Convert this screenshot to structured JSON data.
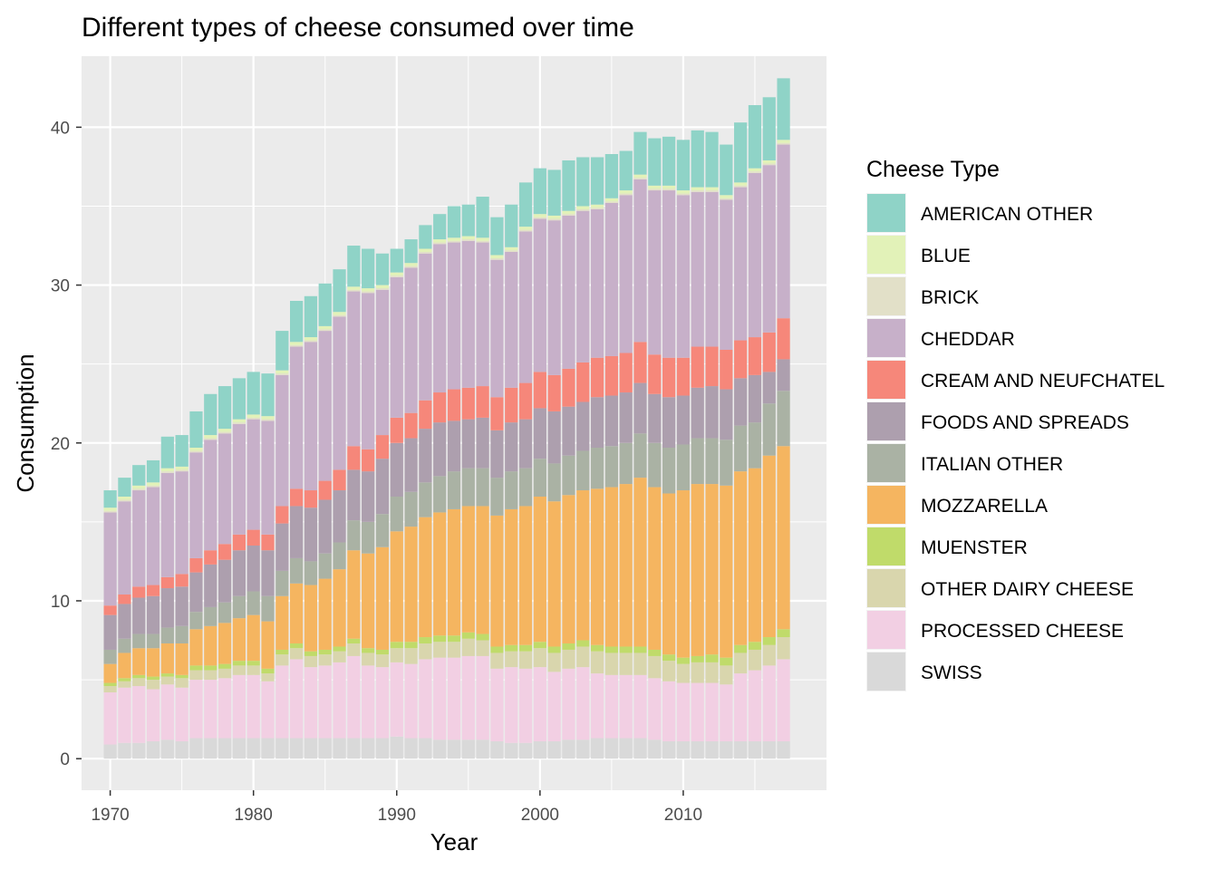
{
  "chart_data": {
    "type": "bar",
    "stacked": true,
    "title": "Different types of cheese consumed over time",
    "xlabel": "Year",
    "ylabel": "Consumption",
    "xlim": [
      1968,
      2020
    ],
    "ylim": [
      -2,
      44.5
    ],
    "x_ticks": [
      1970,
      1980,
      1990,
      2000,
      2010
    ],
    "y_ticks": [
      0,
      10,
      20,
      30,
      40
    ],
    "legend_title": "Cheese Type",
    "legend_position": "right",
    "grid": true,
    "x": [
      1970,
      1971,
      1972,
      1973,
      1974,
      1975,
      1976,
      1977,
      1978,
      1979,
      1980,
      1981,
      1982,
      1983,
      1984,
      1985,
      1986,
      1987,
      1988,
      1989,
      1990,
      1991,
      1992,
      1993,
      1994,
      1995,
      1996,
      1997,
      1998,
      1999,
      2000,
      2001,
      2002,
      2003,
      2004,
      2005,
      2006,
      2007,
      2008,
      2009,
      2010,
      2011,
      2012,
      2013,
      2014,
      2015,
      2016,
      2017
    ],
    "series": [
      {
        "name": "SWISS",
        "color": "#d9d9d9",
        "values": [
          0.9,
          1.0,
          1.0,
          1.1,
          1.2,
          1.1,
          1.3,
          1.3,
          1.3,
          1.3,
          1.3,
          1.3,
          1.3,
          1.3,
          1.3,
          1.3,
          1.3,
          1.3,
          1.3,
          1.3,
          1.4,
          1.3,
          1.3,
          1.2,
          1.2,
          1.2,
          1.2,
          1.1,
          1.0,
          1.0,
          1.1,
          1.1,
          1.2,
          1.2,
          1.3,
          1.3,
          1.3,
          1.3,
          1.2,
          1.1,
          1.1,
          1.1,
          1.1,
          1.1,
          1.1,
          1.1,
          1.1,
          1.1
        ]
      },
      {
        "name": "PROCESSED CHEESE",
        "color": "#f2cfe3",
        "values": [
          3.3,
          3.5,
          3.6,
          3.3,
          3.5,
          3.4,
          3.7,
          3.7,
          3.8,
          4.0,
          4.0,
          3.6,
          4.6,
          5.0,
          4.5,
          4.6,
          4.8,
          5.2,
          4.6,
          4.5,
          4.7,
          4.7,
          5.0,
          5.2,
          5.2,
          5.3,
          5.3,
          4.6,
          4.8,
          4.7,
          4.7,
          4.4,
          4.5,
          4.6,
          4.1,
          4.0,
          4.0,
          4.0,
          3.9,
          3.8,
          3.7,
          3.7,
          3.7,
          3.6,
          4.3,
          4.5,
          4.8,
          5.2
        ]
      },
      {
        "name": "OTHER DAIRY CHEESE",
        "color": "#d9d6ad",
        "values": [
          0.4,
          0.4,
          0.5,
          0.6,
          0.5,
          0.6,
          0.6,
          0.6,
          0.6,
          0.6,
          0.6,
          0.5,
          0.7,
          0.7,
          0.7,
          0.7,
          0.7,
          0.8,
          0.8,
          0.8,
          0.9,
          1.0,
          1.0,
          1.0,
          1.0,
          1.1,
          1.0,
          1.0,
          1.0,
          1.1,
          1.2,
          1.2,
          1.2,
          1.3,
          1.4,
          1.4,
          1.4,
          1.4,
          1.4,
          1.3,
          1.2,
          1.3,
          1.3,
          1.2,
          1.3,
          1.3,
          1.3,
          1.4
        ]
      },
      {
        "name": "MUENSTER",
        "color": "#c0db6a",
        "values": [
          0.2,
          0.2,
          0.2,
          0.2,
          0.2,
          0.2,
          0.3,
          0.3,
          0.3,
          0.3,
          0.3,
          0.3,
          0.3,
          0.3,
          0.3,
          0.3,
          0.3,
          0.3,
          0.3,
          0.3,
          0.4,
          0.4,
          0.4,
          0.4,
          0.4,
          0.4,
          0.4,
          0.4,
          0.4,
          0.4,
          0.4,
          0.4,
          0.4,
          0.4,
          0.4,
          0.4,
          0.4,
          0.4,
          0.4,
          0.4,
          0.4,
          0.4,
          0.5,
          0.5,
          0.5,
          0.5,
          0.5,
          0.5
        ]
      },
      {
        "name": "MOZZARELLA",
        "color": "#f5b560",
        "values": [
          1.2,
          1.6,
          1.7,
          1.8,
          1.9,
          2.0,
          2.3,
          2.5,
          2.6,
          2.7,
          2.9,
          3.0,
          3.4,
          3.8,
          4.2,
          4.5,
          4.9,
          5.6,
          6.0,
          6.5,
          7.0,
          7.3,
          7.6,
          7.8,
          8.0,
          8.0,
          8.1,
          8.3,
          8.6,
          8.8,
          9.2,
          9.2,
          9.4,
          9.5,
          9.9,
          10.1,
          10.3,
          10.7,
          10.3,
          10.2,
          10.6,
          10.9,
          10.8,
          10.9,
          11.0,
          11.0,
          11.5,
          11.6
        ]
      },
      {
        "name": "ITALIAN OTHER",
        "color": "#aab2a4",
        "values": [
          0.9,
          0.9,
          0.9,
          0.9,
          1.0,
          1.1,
          1.1,
          1.2,
          1.3,
          1.4,
          1.5,
          1.6,
          1.6,
          1.6,
          1.5,
          1.6,
          1.7,
          1.9,
          2.0,
          2.1,
          2.2,
          2.2,
          2.2,
          2.3,
          2.4,
          2.4,
          2.4,
          2.4,
          2.4,
          2.4,
          2.4,
          2.4,
          2.5,
          2.5,
          2.6,
          2.6,
          2.6,
          2.8,
          2.8,
          2.9,
          2.9,
          2.9,
          2.9,
          2.9,
          2.9,
          2.9,
          3.3,
          3.5
        ]
      },
      {
        "name": "FOODS AND SPREADS",
        "color": "#ad9fae",
        "values": [
          2.2,
          2.2,
          2.3,
          2.4,
          2.5,
          2.5,
          2.5,
          2.7,
          2.7,
          2.9,
          2.9,
          2.9,
          3.0,
          3.3,
          3.4,
          3.4,
          3.3,
          3.2,
          3.2,
          3.5,
          3.4,
          3.4,
          3.4,
          3.4,
          3.2,
          3.1,
          3.2,
          3.0,
          3.1,
          3.1,
          3.2,
          3.3,
          3.1,
          3.1,
          3.2,
          3.2,
          3.2,
          3.2,
          3.1,
          3.2,
          3.1,
          3.2,
          3.3,
          3.2,
          3.0,
          3.0,
          2.0,
          2.0
        ]
      },
      {
        "name": "CREAM AND NEUFCHATEL",
        "color": "#f6877a",
        "values": [
          0.6,
          0.6,
          0.7,
          0.7,
          0.7,
          0.8,
          0.9,
          0.9,
          1.0,
          1.0,
          1.0,
          1.0,
          1.1,
          1.1,
          1.1,
          1.2,
          1.3,
          1.5,
          1.4,
          1.5,
          1.6,
          1.6,
          1.8,
          1.9,
          2.0,
          2.0,
          2.0,
          2.1,
          2.2,
          2.3,
          2.3,
          2.3,
          2.4,
          2.5,
          2.5,
          2.5,
          2.5,
          2.6,
          2.5,
          2.5,
          2.4,
          2.6,
          2.5,
          2.5,
          2.4,
          2.4,
          2.5,
          2.6
        ]
      },
      {
        "name": "CHEDDAR",
        "color": "#c7b0c9",
        "values": [
          5.9,
          5.9,
          6.1,
          6.2,
          6.6,
          6.5,
          6.7,
          7.0,
          7.0,
          7.0,
          7.0,
          7.2,
          8.3,
          9.0,
          9.4,
          9.5,
          9.7,
          9.8,
          9.9,
          9.2,
          8.9,
          9.2,
          9.3,
          9.4,
          9.3,
          9.3,
          9.1,
          8.7,
          8.6,
          9.6,
          9.7,
          9.8,
          9.7,
          9.6,
          9.4,
          9.7,
          10.0,
          10.3,
          10.4,
          10.6,
          10.3,
          9.8,
          9.8,
          9.5,
          9.7,
          10.4,
          10.6,
          11.0
        ]
      },
      {
        "name": "BRICK",
        "color": "#e2e0c8",
        "values": [
          0.1,
          0.1,
          0.1,
          0.1,
          0.1,
          0.1,
          0.1,
          0.1,
          0.1,
          0.1,
          0.1,
          0.1,
          0.1,
          0.1,
          0.1,
          0.1,
          0.1,
          0.1,
          0.1,
          0.1,
          0.1,
          0.1,
          0.1,
          0.1,
          0.1,
          0.1,
          0.1,
          0.1,
          0.1,
          0.1,
          0.1,
          0.1,
          0.1,
          0.1,
          0.1,
          0.1,
          0.1,
          0.1,
          0.1,
          0.1,
          0.1,
          0.1,
          0.1,
          0.1,
          0.1,
          0.1,
          0.1,
          0.1
        ]
      },
      {
        "name": "BLUE",
        "color": "#e2f2b8",
        "values": [
          0.2,
          0.2,
          0.2,
          0.2,
          0.2,
          0.2,
          0.2,
          0.2,
          0.2,
          0.2,
          0.2,
          0.2,
          0.2,
          0.2,
          0.2,
          0.2,
          0.2,
          0.2,
          0.2,
          0.2,
          0.2,
          0.2,
          0.2,
          0.2,
          0.2,
          0.2,
          0.2,
          0.2,
          0.2,
          0.2,
          0.2,
          0.2,
          0.2,
          0.2,
          0.2,
          0.2,
          0.2,
          0.2,
          0.2,
          0.2,
          0.2,
          0.2,
          0.2,
          0.2,
          0.2,
          0.2,
          0.2,
          0.2
        ]
      },
      {
        "name": "AMERICAN OTHER",
        "color": "#8fd3c7",
        "values": [
          1.1,
          1.2,
          1.3,
          1.4,
          2.0,
          2.0,
          2.3,
          2.6,
          2.7,
          2.6,
          2.7,
          2.7,
          2.5,
          2.6,
          2.6,
          2.7,
          2.7,
          2.6,
          2.5,
          2.0,
          1.5,
          1.5,
          1.5,
          1.6,
          2.0,
          2.0,
          2.6,
          2.4,
          2.7,
          2.8,
          2.9,
          2.9,
          3.2,
          3.1,
          3.0,
          2.8,
          2.5,
          2.7,
          3.0,
          3.1,
          3.2,
          3.6,
          3.5,
          3.2,
          3.8,
          4.0,
          4.0,
          3.9
        ]
      }
    ]
  }
}
